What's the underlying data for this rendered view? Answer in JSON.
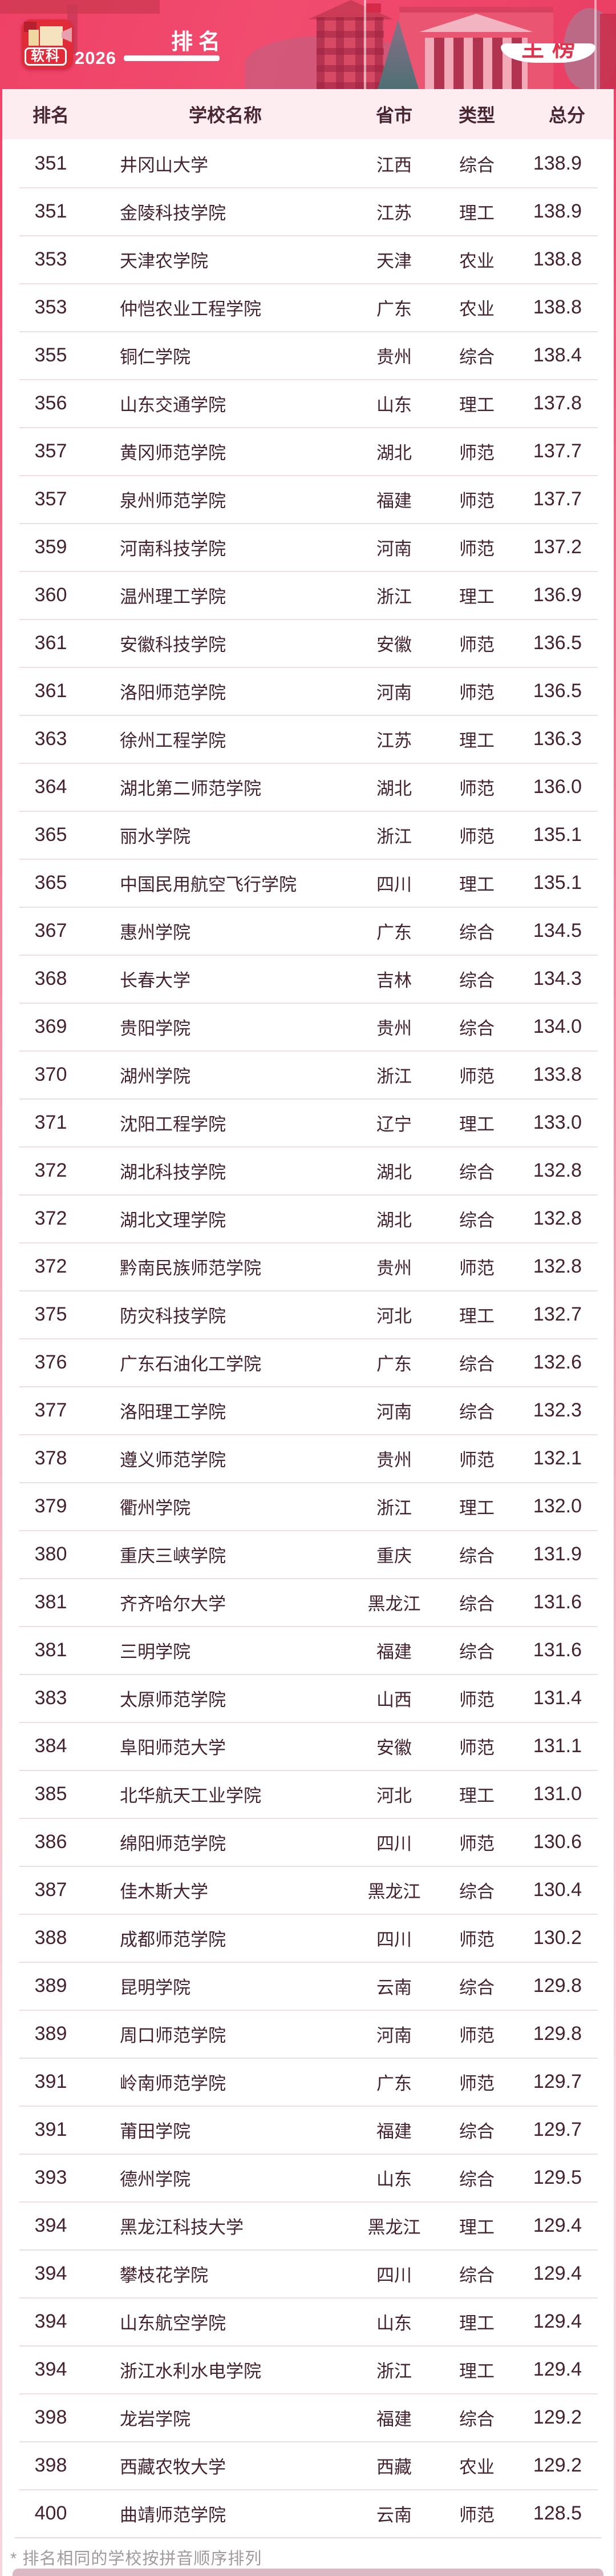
{
  "banner": {
    "year": "2026",
    "title": "排名",
    "badge_label": "主榜",
    "logo_text": "软科"
  },
  "table": {
    "headers": [
      "排名",
      "学校名称",
      "省市",
      "类型",
      "总分"
    ],
    "rows": [
      [
        "351",
        "井冈山大学",
        "江西",
        "综合",
        "138.9"
      ],
      [
        "351",
        "金陵科技学院",
        "江苏",
        "理工",
        "138.9"
      ],
      [
        "353",
        "天津农学院",
        "天津",
        "农业",
        "138.8"
      ],
      [
        "353",
        "仲恺农业工程学院",
        "广东",
        "农业",
        "138.8"
      ],
      [
        "355",
        "铜仁学院",
        "贵州",
        "综合",
        "138.4"
      ],
      [
        "356",
        "山东交通学院",
        "山东",
        "理工",
        "137.8"
      ],
      [
        "357",
        "黄冈师范学院",
        "湖北",
        "师范",
        "137.7"
      ],
      [
        "357",
        "泉州师范学院",
        "福建",
        "师范",
        "137.7"
      ],
      [
        "359",
        "河南科技学院",
        "河南",
        "师范",
        "137.2"
      ],
      [
        "360",
        "温州理工学院",
        "浙江",
        "理工",
        "136.9"
      ],
      [
        "361",
        "安徽科技学院",
        "安徽",
        "师范",
        "136.5"
      ],
      [
        "361",
        "洛阳师范学院",
        "河南",
        "师范",
        "136.5"
      ],
      [
        "363",
        "徐州工程学院",
        "江苏",
        "理工",
        "136.3"
      ],
      [
        "364",
        "湖北第二师范学院",
        "湖北",
        "师范",
        "136.0"
      ],
      [
        "365",
        "丽水学院",
        "浙江",
        "师范",
        "135.1"
      ],
      [
        "365",
        "中国民用航空飞行学院",
        "四川",
        "理工",
        "135.1"
      ],
      [
        "367",
        "惠州学院",
        "广东",
        "综合",
        "134.5"
      ],
      [
        "368",
        "长春大学",
        "吉林",
        "综合",
        "134.3"
      ],
      [
        "369",
        "贵阳学院",
        "贵州",
        "综合",
        "134.0"
      ],
      [
        "370",
        "湖州学院",
        "浙江",
        "师范",
        "133.8"
      ],
      [
        "371",
        "沈阳工程学院",
        "辽宁",
        "理工",
        "133.0"
      ],
      [
        "372",
        "湖北科技学院",
        "湖北",
        "综合",
        "132.8"
      ],
      [
        "372",
        "湖北文理学院",
        "湖北",
        "综合",
        "132.8"
      ],
      [
        "372",
        "黔南民族师范学院",
        "贵州",
        "师范",
        "132.8"
      ],
      [
        "375",
        "防灾科技学院",
        "河北",
        "理工",
        "132.7"
      ],
      [
        "376",
        "广东石油化工学院",
        "广东",
        "综合",
        "132.6"
      ],
      [
        "377",
        "洛阳理工学院",
        "河南",
        "综合",
        "132.3"
      ],
      [
        "378",
        "遵义师范学院",
        "贵州",
        "师范",
        "132.1"
      ],
      [
        "379",
        "衢州学院",
        "浙江",
        "理工",
        "132.0"
      ],
      [
        "380",
        "重庆三峡学院",
        "重庆",
        "综合",
        "131.9"
      ],
      [
        "381",
        "齐齐哈尔大学",
        "黑龙江",
        "综合",
        "131.6"
      ],
      [
        "381",
        "三明学院",
        "福建",
        "综合",
        "131.6"
      ],
      [
        "383",
        "太原师范学院",
        "山西",
        "师范",
        "131.4"
      ],
      [
        "384",
        "阜阳师范大学",
        "安徽",
        "师范",
        "131.1"
      ],
      [
        "385",
        "北华航天工业学院",
        "河北",
        "理工",
        "131.0"
      ],
      [
        "386",
        "绵阳师范学院",
        "四川",
        "师范",
        "130.6"
      ],
      [
        "387",
        "佳木斯大学",
        "黑龙江",
        "综合",
        "130.4"
      ],
      [
        "388",
        "成都师范学院",
        "四川",
        "师范",
        "130.2"
      ],
      [
        "389",
        "昆明学院",
        "云南",
        "综合",
        "129.8"
      ],
      [
        "389",
        "周口师范学院",
        "河南",
        "师范",
        "129.8"
      ],
      [
        "391",
        "岭南师范学院",
        "广东",
        "师范",
        "129.7"
      ],
      [
        "391",
        "莆田学院",
        "福建",
        "综合",
        "129.7"
      ],
      [
        "393",
        "德州学院",
        "山东",
        "综合",
        "129.5"
      ],
      [
        "394",
        "黑龙江科技大学",
        "黑龙江",
        "理工",
        "129.4"
      ],
      [
        "394",
        "攀枝花学院",
        "四川",
        "综合",
        "129.4"
      ],
      [
        "394",
        "山东航空学院",
        "山东",
        "理工",
        "129.4"
      ],
      [
        "394",
        "浙江水利水电学院",
        "浙江",
        "理工",
        "129.4"
      ],
      [
        "398",
        "龙岩学院",
        "福建",
        "综合",
        "129.2"
      ],
      [
        "398",
        "西藏农牧大学",
        "西藏",
        "农业",
        "129.2"
      ],
      [
        "400",
        "曲靖师范学院",
        "云南",
        "师范",
        "128.5"
      ]
    ]
  },
  "footnote": "* 排名相同的学校按拼音顺序排列",
  "colors": {
    "banner_pink": "#ef4166",
    "header_bg": "#fdedf0",
    "text_dark": "#44222f",
    "badge_text": "#e3304b",
    "footer_bar": "#d9b8c3"
  }
}
